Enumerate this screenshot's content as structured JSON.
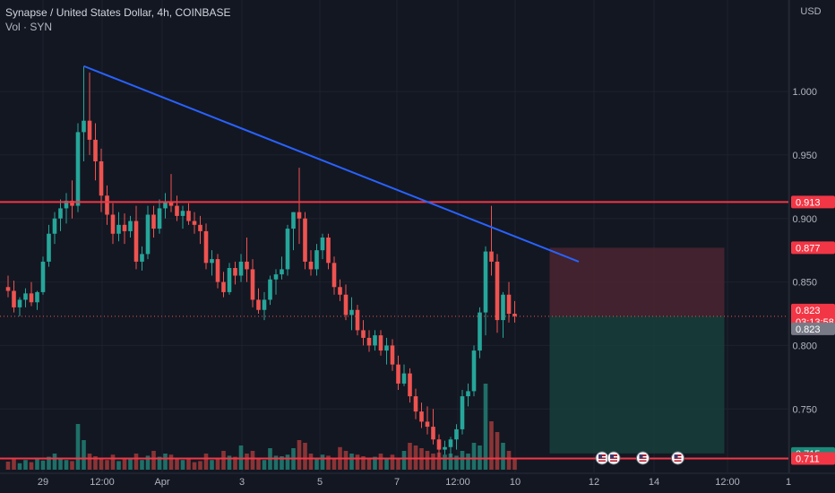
{
  "header": {
    "title": "Synapse / United States Dollar, 4h, COINBASE",
    "volume_label": "Vol · SYN"
  },
  "colors": {
    "background": "#131722",
    "grid": "#1e222d",
    "up": "#26a69a",
    "down": "#ef5350",
    "up_volume": "#1f6f68",
    "down_volume": "#8a3436",
    "trendline": "#2962ff",
    "level_line": "#f23645",
    "risk_zone": "#4a2430",
    "reward_zone": "#17403b"
  },
  "chart_data": {
    "type": "candlestick",
    "symbol": "SYN/USD",
    "currency": "USD",
    "ylim": [
      0.705,
      1.065
    ],
    "y_ticks": [
      "1.000",
      "0.950",
      "0.900",
      "0.850",
      "0.800",
      "0.750"
    ],
    "x_ticks": [
      "29",
      "12:00",
      "Apr",
      "3",
      "5",
      "7",
      "12:00",
      "10",
      "12",
      "14",
      "12:00",
      "1"
    ],
    "candles": [
      [
        0.846,
        0.855,
        0.838,
        0.843
      ],
      [
        0.843,
        0.851,
        0.826,
        0.83
      ],
      [
        0.83,
        0.838,
        0.823,
        0.836
      ],
      [
        0.836,
        0.845,
        0.83,
        0.841
      ],
      [
        0.841,
        0.85,
        0.831,
        0.834
      ],
      [
        0.834,
        0.843,
        0.828,
        0.842
      ],
      [
        0.842,
        0.87,
        0.84,
        0.866
      ],
      [
        0.866,
        0.895,
        0.862,
        0.888
      ],
      [
        0.888,
        0.905,
        0.88,
        0.9
      ],
      [
        0.9,
        0.915,
        0.89,
        0.908
      ],
      [
        0.908,
        0.92,
        0.896,
        0.914
      ],
      [
        0.914,
        0.93,
        0.9,
        0.91
      ],
      [
        0.91,
        0.975,
        0.905,
        0.968
      ],
      [
        0.968,
        1.02,
        0.945,
        0.977
      ],
      [
        0.977,
        1.015,
        0.95,
        0.962
      ],
      [
        0.962,
        0.975,
        0.93,
        0.945
      ],
      [
        0.945,
        0.955,
        0.905,
        0.918
      ],
      [
        0.918,
        0.926,
        0.895,
        0.903
      ],
      [
        0.903,
        0.912,
        0.88,
        0.888
      ],
      [
        0.888,
        0.905,
        0.882,
        0.895
      ],
      [
        0.895,
        0.904,
        0.88,
        0.89
      ],
      [
        0.89,
        0.902,
        0.885,
        0.898
      ],
      [
        0.898,
        0.91,
        0.86,
        0.866
      ],
      [
        0.866,
        0.878,
        0.859,
        0.872
      ],
      [
        0.872,
        0.91,
        0.868,
        0.903
      ],
      [
        0.903,
        0.91,
        0.885,
        0.892
      ],
      [
        0.892,
        0.915,
        0.888,
        0.908
      ],
      [
        0.908,
        0.92,
        0.9,
        0.913
      ],
      [
        0.913,
        0.935,
        0.905,
        0.91
      ],
      [
        0.91,
        0.918,
        0.898,
        0.902
      ],
      [
        0.902,
        0.91,
        0.892,
        0.906
      ],
      [
        0.906,
        0.912,
        0.895,
        0.898
      ],
      [
        0.898,
        0.905,
        0.888,
        0.895
      ],
      [
        0.895,
        0.902,
        0.88,
        0.89
      ],
      [
        0.89,
        0.896,
        0.86,
        0.865
      ],
      [
        0.865,
        0.875,
        0.855,
        0.868
      ],
      [
        0.868,
        0.872,
        0.845,
        0.85
      ],
      [
        0.85,
        0.858,
        0.838,
        0.842
      ],
      [
        0.842,
        0.865,
        0.84,
        0.861
      ],
      [
        0.861,
        0.866,
        0.848,
        0.855
      ],
      [
        0.855,
        0.872,
        0.85,
        0.866
      ],
      [
        0.866,
        0.885,
        0.85,
        0.86
      ],
      [
        0.86,
        0.868,
        0.83,
        0.836
      ],
      [
        0.836,
        0.845,
        0.825,
        0.828
      ],
      [
        0.828,
        0.842,
        0.82,
        0.836
      ],
      [
        0.836,
        0.855,
        0.832,
        0.852
      ],
      [
        0.852,
        0.86,
        0.84,
        0.856
      ],
      [
        0.856,
        0.87,
        0.852,
        0.86
      ],
      [
        0.86,
        0.895,
        0.855,
        0.892
      ],
      [
        0.892,
        0.905,
        0.875,
        0.905
      ],
      [
        0.905,
        0.94,
        0.88,
        0.9
      ],
      [
        0.9,
        0.905,
        0.86,
        0.866
      ],
      [
        0.866,
        0.875,
        0.855,
        0.86
      ],
      [
        0.86,
        0.88,
        0.855,
        0.875
      ],
      [
        0.875,
        0.888,
        0.868,
        0.885
      ],
      [
        0.885,
        0.888,
        0.86,
        0.865
      ],
      [
        0.865,
        0.87,
        0.84,
        0.846
      ],
      [
        0.846,
        0.852,
        0.835,
        0.84
      ],
      [
        0.84,
        0.848,
        0.82,
        0.824
      ],
      [
        0.824,
        0.838,
        0.812,
        0.828
      ],
      [
        0.828,
        0.832,
        0.808,
        0.812
      ],
      [
        0.812,
        0.82,
        0.8,
        0.806
      ],
      [
        0.806,
        0.812,
        0.795,
        0.8
      ],
      [
        0.8,
        0.812,
        0.796,
        0.808
      ],
      [
        0.808,
        0.812,
        0.792,
        0.796
      ],
      [
        0.796,
        0.806,
        0.785,
        0.8
      ],
      [
        0.8,
        0.805,
        0.78,
        0.785
      ],
      [
        0.785,
        0.792,
        0.765,
        0.77
      ],
      [
        0.77,
        0.785,
        0.768,
        0.778
      ],
      [
        0.778,
        0.782,
        0.755,
        0.76
      ],
      [
        0.76,
        0.766,
        0.742,
        0.748
      ],
      [
        0.748,
        0.755,
        0.735,
        0.74
      ],
      [
        0.74,
        0.752,
        0.73,
        0.736
      ],
      [
        0.736,
        0.75,
        0.722,
        0.726
      ],
      [
        0.726,
        0.73,
        0.712,
        0.718
      ],
      [
        0.718,
        0.725,
        0.714,
        0.72
      ],
      [
        0.72,
        0.728,
        0.712,
        0.726
      ],
      [
        0.726,
        0.738,
        0.718,
        0.734
      ],
      [
        0.734,
        0.765,
        0.73,
        0.76
      ],
      [
        0.76,
        0.77,
        0.752,
        0.764
      ],
      [
        0.764,
        0.8,
        0.76,
        0.796
      ],
      [
        0.796,
        0.83,
        0.79,
        0.826
      ],
      [
        0.826,
        0.878,
        0.808,
        0.874
      ],
      [
        0.874,
        0.91,
        0.855,
        0.866
      ],
      [
        0.866,
        0.872,
        0.81,
        0.82
      ],
      [
        0.82,
        0.842,
        0.806,
        0.84
      ],
      [
        0.84,
        0.85,
        0.818,
        0.825
      ],
      [
        0.825,
        0.835,
        0.818,
        0.823
      ]
    ],
    "volumes": [
      0.15,
      0.22,
      0.12,
      0.18,
      0.14,
      0.2,
      0.17,
      0.24,
      0.3,
      0.22,
      0.18,
      0.16,
      0.85,
      0.55,
      0.3,
      0.25,
      0.2,
      0.18,
      0.28,
      0.16,
      0.22,
      0.2,
      0.3,
      0.18,
      0.26,
      0.35,
      0.24,
      0.3,
      0.28,
      0.2,
      0.18,
      0.22,
      0.14,
      0.16,
      0.3,
      0.18,
      0.2,
      0.35,
      0.26,
      0.24,
      0.45,
      0.3,
      0.35,
      0.22,
      0.18,
      0.4,
      0.26,
      0.25,
      0.28,
      0.4,
      0.55,
      0.5,
      0.3,
      0.22,
      0.28,
      0.26,
      0.2,
      0.42,
      0.35,
      0.3,
      0.28,
      0.25,
      0.2,
      0.24,
      0.3,
      0.22,
      0.28,
      0.2,
      0.35,
      0.5,
      0.45,
      0.4,
      0.35,
      0.3,
      0.32,
      0.28,
      0.3,
      0.26,
      0.35,
      0.3,
      0.5,
      0.45,
      1.6,
      0.9,
      0.7,
      0.5,
      0.35,
      0.2
    ],
    "trendline": {
      "from": [
        13,
        1.02
      ],
      "to": [
        98,
        0.866
      ]
    },
    "levels": [
      0.913,
      0.711
    ],
    "position": {
      "start": 93,
      "end": 123,
      "entry": 0.823,
      "stop": 0.877,
      "target": 0.715
    },
    "price_tags": [
      {
        "value": 0.913,
        "label": "0.913",
        "color": "#f23645"
      },
      {
        "value": 0.877,
        "label": "0.877",
        "color": "#f23645"
      },
      {
        "value": 0.823,
        "label": "0.823",
        "label2": "03:13:58",
        "color": "#f23645"
      },
      {
        "value": 0.823,
        "label": "0.823",
        "color": "#787b86",
        "offset": 1
      },
      {
        "value": 0.715,
        "label": "0.715",
        "color": "#1b8a7a"
      },
      {
        "value": 0.711,
        "label": "0.711",
        "color": "#f23645"
      }
    ],
    "events": [
      102,
      104,
      109,
      115
    ]
  }
}
